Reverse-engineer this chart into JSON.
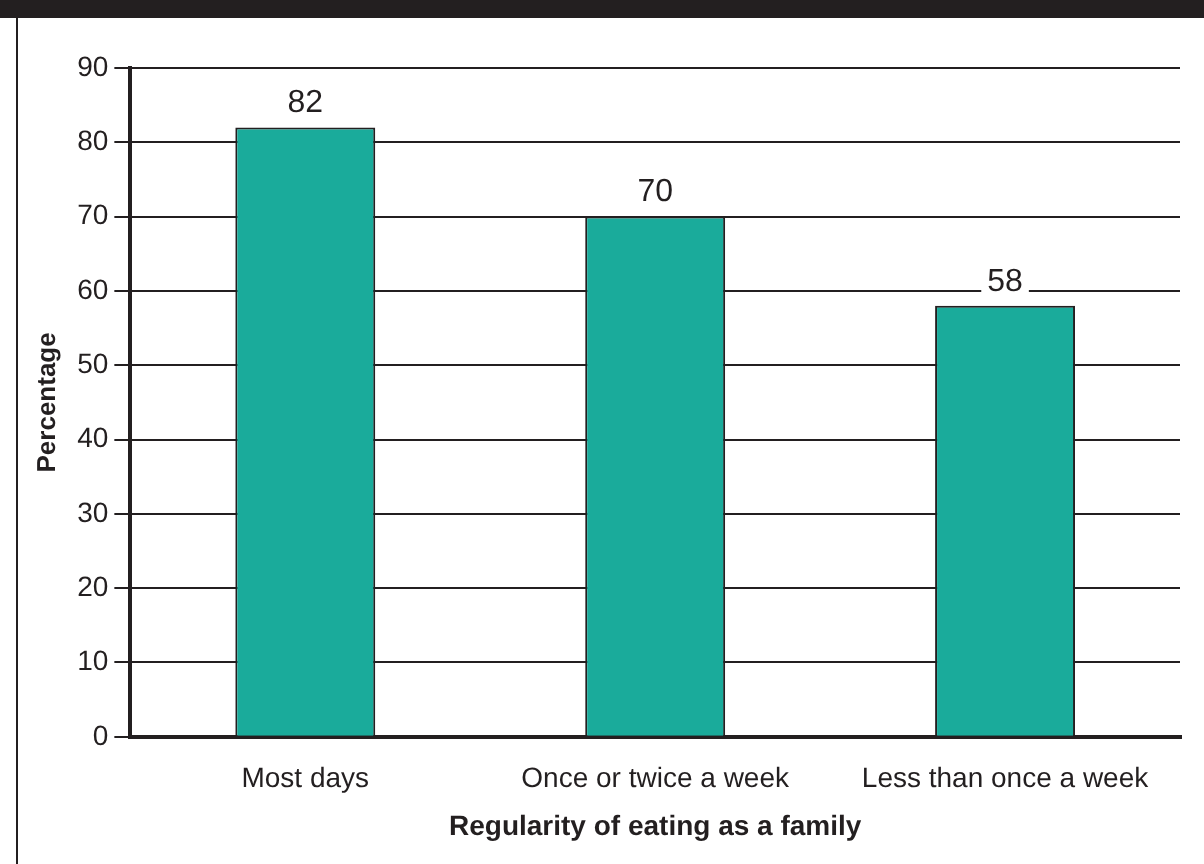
{
  "chart_data": {
    "type": "bar",
    "xlabel": "Regularity of eating as a family",
    "ylabel": "Percentage",
    "categories": [
      "Most days",
      "Once or twice a week",
      "Less than once a week"
    ],
    "values": [
      82,
      70,
      58
    ],
    "color": "#1aab9b",
    "ylim": [
      0,
      90
    ],
    "yticks": [
      0,
      10,
      20,
      30,
      40,
      50,
      60,
      70,
      80,
      90
    ],
    "grid": "y",
    "data_labels": true
  }
}
